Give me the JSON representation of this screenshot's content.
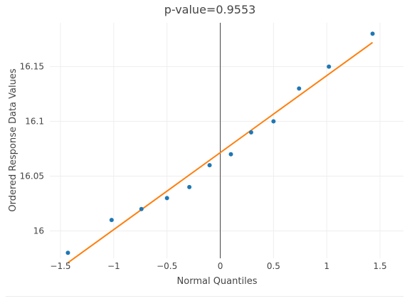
{
  "chart_data": {
    "type": "scatter",
    "title": "p-value=0.9553",
    "xlabel": "Normal Quantiles",
    "ylabel": "Ordered Response Data Values",
    "xlim": [
      -1.6,
      1.72
    ],
    "ylim": [
      15.975,
      16.19
    ],
    "x_ticks": [
      -1.5,
      -1,
      -0.5,
      0,
      0.5,
      1,
      1.5
    ],
    "x_tick_labels": [
      "−1.5",
      "−1",
      "−0.5",
      "0",
      "0.5",
      "1",
      "1.5"
    ],
    "y_ticks": [
      16,
      16.05,
      16.1,
      16.15
    ],
    "y_tick_labels": [
      "16",
      "16.05",
      "16.1",
      "16.15"
    ],
    "grid": true,
    "series": [
      {
        "type": "scatter",
        "color": "#1f77b4",
        "x": [
          -1.43,
          -1.02,
          -0.74,
          -0.5,
          -0.29,
          -0.1,
          0.1,
          0.29,
          0.5,
          0.74,
          1.02,
          1.43
        ],
        "y": [
          15.98,
          16.01,
          16.02,
          16.03,
          16.04,
          16.06,
          16.07,
          16.09,
          16.1,
          16.13,
          16.15,
          16.18
        ]
      },
      {
        "type": "line",
        "color": "#ff7f0e",
        "x": [
          -1.43,
          1.43
        ],
        "y": [
          15.971,
          16.172
        ]
      }
    ]
  }
}
